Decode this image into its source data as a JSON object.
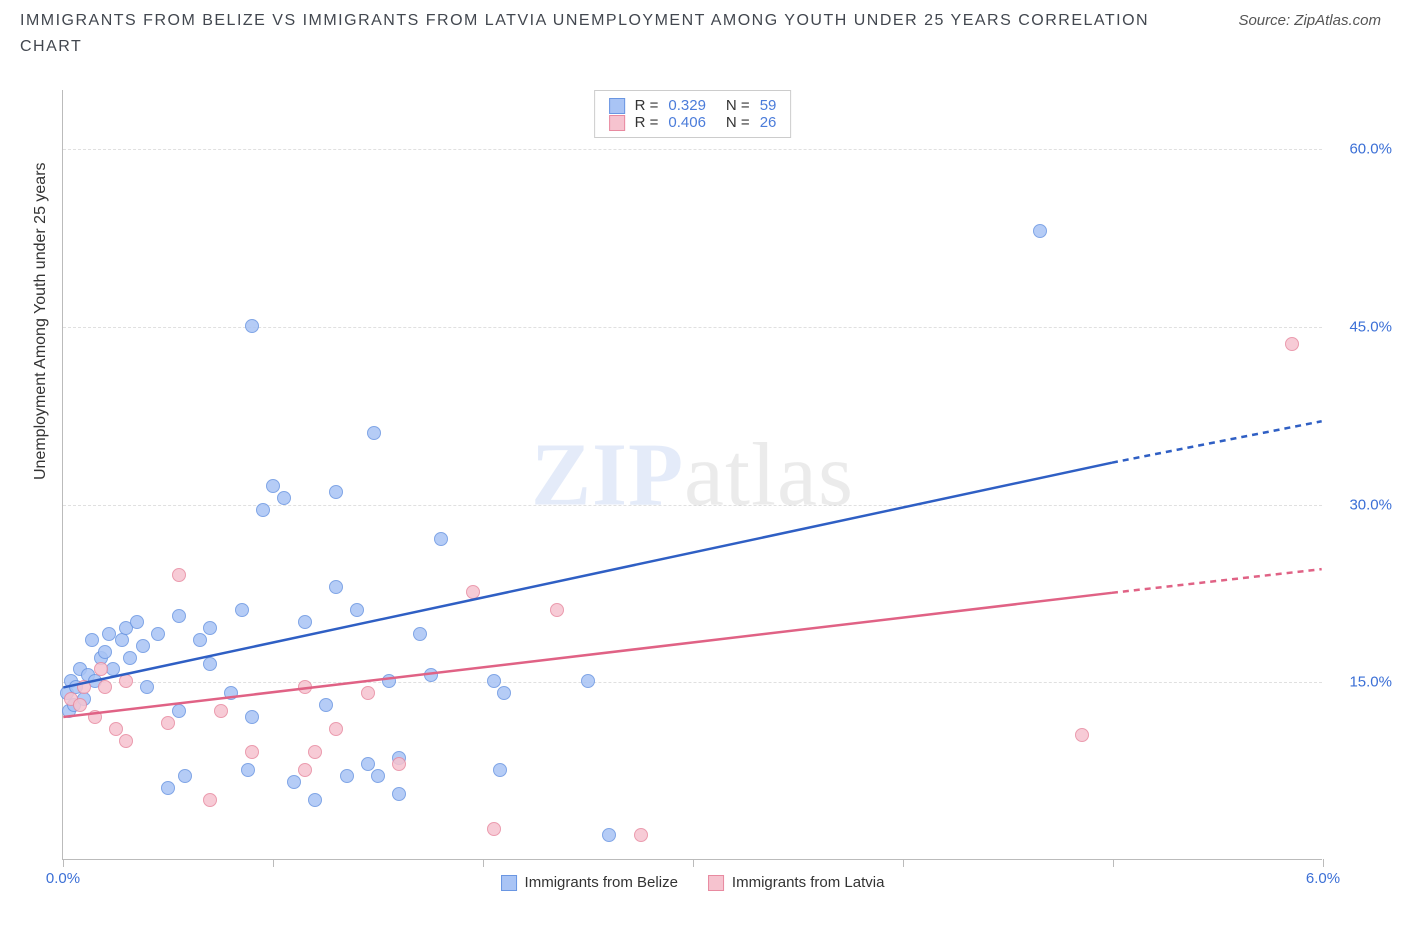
{
  "title": "IMMIGRANTS FROM BELIZE VS IMMIGRANTS FROM LATVIA UNEMPLOYMENT AMONG YOUTH UNDER 25 YEARS CORRELATION CHART",
  "source": "Source: ZipAtlas.com",
  "ylabel": "Unemployment Among Youth under 25 years",
  "watermark_a": "ZIP",
  "watermark_b": "atlas",
  "chart": {
    "type": "scatter",
    "xlim": [
      0,
      6
    ],
    "ylim": [
      0,
      65
    ],
    "yticks": [
      15,
      30,
      45,
      60
    ],
    "ytick_labels": [
      "15.0%",
      "30.0%",
      "45.0%",
      "60.0%"
    ],
    "xtick_positions": [
      0,
      1,
      2,
      3,
      4,
      5,
      6
    ],
    "xtick_labels": {
      "0": "0.0%",
      "6": "6.0%"
    },
    "grid_color": "#e0e0e0",
    "background": "#ffffff",
    "axis_color": "#bbbbbb"
  },
  "series": [
    {
      "name": "Immigrants from Belize",
      "R": "0.329",
      "N": "59",
      "fill": "#a9c4f5",
      "stroke": "#6a96e2",
      "line_color": "#2f5fc4",
      "trend": {
        "y_at_x0": 14.5,
        "y_at_x5": 33.5,
        "dash_to_x": 6,
        "y_at_dash_end": 37.0
      },
      "points": [
        [
          0.02,
          14
        ],
        [
          0.03,
          12.5
        ],
        [
          0.04,
          15
        ],
        [
          0.05,
          13
        ],
        [
          0.06,
          14.5
        ],
        [
          0.08,
          16
        ],
        [
          0.1,
          13.5
        ],
        [
          0.12,
          15.5
        ],
        [
          0.14,
          18.5
        ],
        [
          0.15,
          15
        ],
        [
          0.18,
          17
        ],
        [
          0.2,
          17.5
        ],
        [
          0.22,
          19
        ],
        [
          0.24,
          16
        ],
        [
          0.28,
          18.5
        ],
        [
          0.3,
          19.5
        ],
        [
          0.32,
          17
        ],
        [
          0.35,
          20
        ],
        [
          0.38,
          18
        ],
        [
          0.4,
          14.5
        ],
        [
          0.45,
          19
        ],
        [
          0.5,
          6
        ],
        [
          0.55,
          12.5
        ],
        [
          0.55,
          20.5
        ],
        [
          0.58,
          7
        ],
        [
          0.7,
          16.5
        ],
        [
          0.7,
          19.5
        ],
        [
          0.8,
          14
        ],
        [
          0.85,
          21
        ],
        [
          0.88,
          7.5
        ],
        [
          0.9,
          12
        ],
        [
          0.9,
          45
        ],
        [
          0.95,
          29.5
        ],
        [
          1,
          31.5
        ],
        [
          1.05,
          30.5
        ],
        [
          1.1,
          6.5
        ],
        [
          1.15,
          20
        ],
        [
          1.2,
          5
        ],
        [
          1.25,
          13
        ],
        [
          1.3,
          23
        ],
        [
          1.3,
          31
        ],
        [
          1.35,
          7
        ],
        [
          1.4,
          21
        ],
        [
          1.45,
          8
        ],
        [
          1.48,
          36
        ],
        [
          1.5,
          7
        ],
        [
          1.55,
          15
        ],
        [
          1.6,
          8.5
        ],
        [
          1.7,
          19
        ],
        [
          1.75,
          15.5
        ],
        [
          1.8,
          27
        ],
        [
          2.05,
          15
        ],
        [
          2.08,
          7.5
        ],
        [
          2.1,
          14
        ],
        [
          2.5,
          15
        ],
        [
          2.6,
          2
        ],
        [
          4.65,
          53
        ],
        [
          1.6,
          5.5
        ],
        [
          0.65,
          18.5
        ]
      ]
    },
    {
      "name": "Immigrants from Latvia",
      "R": "0.406",
      "N": "26",
      "fill": "#f6c3cf",
      "stroke": "#e88aa0",
      "line_color": "#e06285",
      "trend": {
        "y_at_x0": 12,
        "y_at_x5": 22.5,
        "dash_to_x": 6,
        "y_at_dash_end": 24.5
      },
      "points": [
        [
          0.04,
          13.5
        ],
        [
          0.08,
          13
        ],
        [
          0.1,
          14.5
        ],
        [
          0.15,
          12
        ],
        [
          0.18,
          16
        ],
        [
          0.2,
          14.5
        ],
        [
          0.25,
          11
        ],
        [
          0.3,
          15
        ],
        [
          0.3,
          10
        ],
        [
          0.5,
          11.5
        ],
        [
          0.55,
          24
        ],
        [
          0.7,
          5
        ],
        [
          0.75,
          12.5
        ],
        [
          0.9,
          9
        ],
        [
          1.15,
          7.5
        ],
        [
          1.15,
          14.5
        ],
        [
          1.2,
          9
        ],
        [
          1.3,
          11
        ],
        [
          1.45,
          14
        ],
        [
          1.6,
          8
        ],
        [
          1.95,
          22.5
        ],
        [
          2.05,
          2.5
        ],
        [
          2.35,
          21
        ],
        [
          2.75,
          2
        ],
        [
          4.85,
          10.5
        ],
        [
          5.85,
          43.5
        ]
      ]
    }
  ],
  "legend_labels": {
    "R": "R =",
    "N": "N ="
  }
}
